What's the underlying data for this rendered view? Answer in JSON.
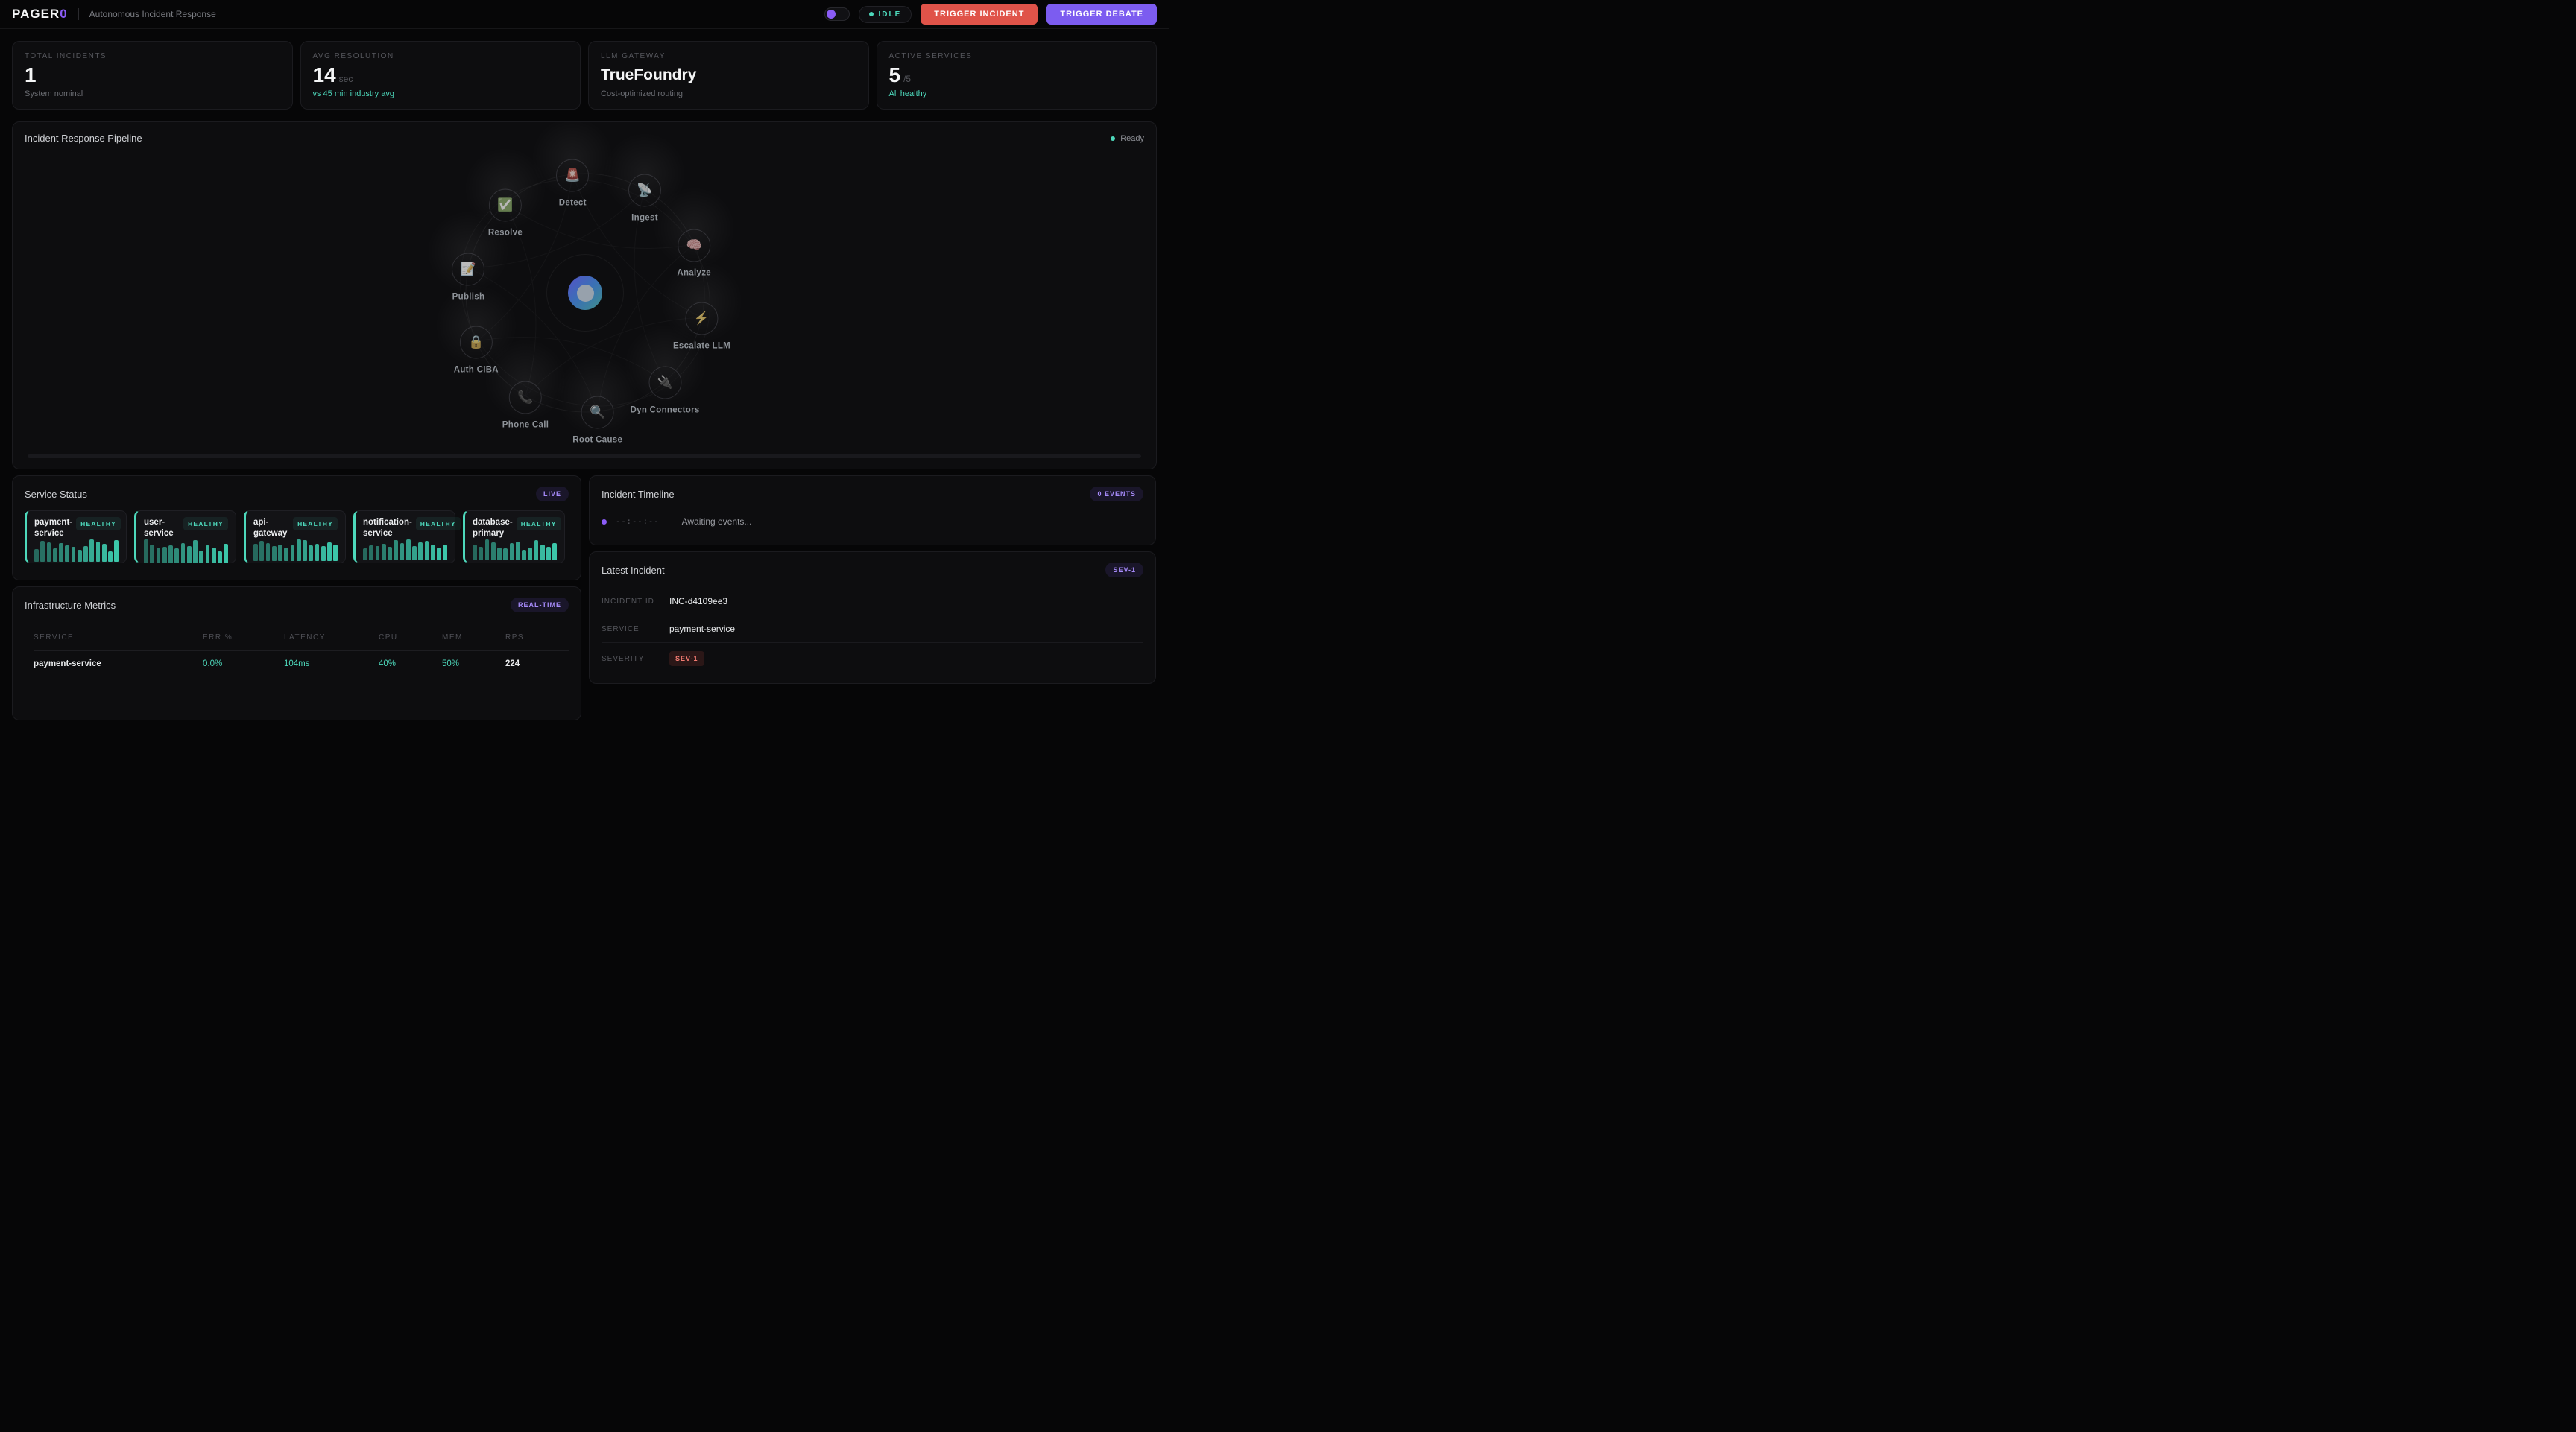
{
  "colors": {
    "teal": "#4dd8bb",
    "purple": "#8b5cf6",
    "purple_light": "#a78bfa",
    "red": "#e05349",
    "orb_gradient": [
      "#5552c8",
      "#3a70b5",
      "#3f8f88"
    ]
  },
  "header": {
    "logo_text": "PAGER",
    "logo_accent": "0",
    "subtitle": "Autonomous Incident Response",
    "status_label": "IDLE",
    "trigger_incident_label": "TRIGGER INCIDENT",
    "trigger_debate_label": "TRIGGER DEBATE"
  },
  "stats": [
    {
      "label": "TOTAL INCIDENTS",
      "value": "1",
      "suffix": "",
      "size": "lg",
      "sub": "System nominal",
      "sub_style": "gray"
    },
    {
      "label": "AVG RESOLUTION",
      "value": "14",
      "suffix": "sec",
      "size": "lg",
      "sub": "vs 45 min industry avg",
      "sub_style": "teal"
    },
    {
      "label": "LLM GATEWAY",
      "value": "TrueFoundry",
      "suffix": "",
      "size": "md",
      "sub": "Cost-optimized routing",
      "sub_style": "gray"
    },
    {
      "label": "ACTIVE SERVICES",
      "value": "5",
      "suffix": "/5",
      "size": "lg",
      "sub": "All healthy",
      "sub_style": "teal"
    }
  ],
  "pipeline": {
    "title": "Incident Response Pipeline",
    "status": "Ready",
    "nodes": [
      {
        "label": "Detect",
        "icon": "siren-icon",
        "emoji": "🚨"
      },
      {
        "label": "Ingest",
        "icon": "satellite-icon",
        "emoji": "📡"
      },
      {
        "label": "Analyze",
        "icon": "brain-icon",
        "emoji": "🧠"
      },
      {
        "label": "Escalate LLM",
        "icon": "lightning-icon",
        "emoji": "⚡"
      },
      {
        "label": "Dyn Connectors",
        "icon": "plug-icon",
        "emoji": "🔌"
      },
      {
        "label": "Root Cause",
        "icon": "magnifier-icon",
        "emoji": "🔍"
      },
      {
        "label": "Phone Call",
        "icon": "phone-icon",
        "emoji": "📞"
      },
      {
        "label": "Auth CIBA",
        "icon": "lock-icon",
        "emoji": "🔒"
      },
      {
        "label": "Publish",
        "icon": "memo-icon",
        "emoji": "📝"
      },
      {
        "label": "Resolve",
        "icon": "check-icon",
        "emoji": "✅"
      }
    ]
  },
  "service_status": {
    "title": "Service Status",
    "badge": "LIVE",
    "services": [
      {
        "name": "payment-service",
        "status": "HEALTHY",
        "bars": [
          28,
          58,
          52,
          30,
          50,
          42,
          35,
          26,
          38,
          64,
          56,
          46,
          20,
          60
        ]
      },
      {
        "name": "user-service",
        "status": "HEALTHY",
        "bars": [
          70,
          50,
          38,
          42,
          48,
          35,
          55,
          45,
          68,
          28,
          46,
          40,
          25,
          52
        ]
      },
      {
        "name": "api-gateway",
        "status": "HEALTHY",
        "bars": [
          45,
          55,
          48,
          35,
          42,
          30,
          38,
          62,
          58,
          40,
          45,
          35,
          50,
          42
        ]
      },
      {
        "name": "notification-service",
        "status": "HEALTHY",
        "bars": [
          25,
          35,
          32,
          42,
          30,
          55,
          45,
          58,
          32,
          48,
          52,
          38,
          28,
          40
        ]
      },
      {
        "name": "database-primary",
        "status": "HEALTHY",
        "bars": [
          40,
          30,
          58,
          48,
          28,
          25,
          45,
          50,
          20,
          28,
          55,
          38,
          30,
          45
        ]
      }
    ]
  },
  "timeline": {
    "title": "Incident Timeline",
    "badge": "0 EVENTS",
    "event_time": "--:--:--",
    "event_text": "Awaiting events..."
  },
  "latest_incident": {
    "title": "Latest Incident",
    "badge": "SEV-1",
    "rows": [
      {
        "label": "INCIDENT ID",
        "value": "INC-d4109ee3",
        "type": "text"
      },
      {
        "label": "SERVICE",
        "value": "payment-service",
        "type": "text"
      },
      {
        "label": "SEVERITY",
        "value": "SEV-1",
        "type": "badge"
      }
    ]
  },
  "infrastructure": {
    "title": "Infrastructure Metrics",
    "badge": "REAL-TIME",
    "columns": [
      "SERVICE",
      "ERR %",
      "LATENCY",
      "CPU",
      "MEM",
      "RPS"
    ],
    "rows": [
      {
        "service": "payment-service",
        "err": "0.0%",
        "latency": "104ms",
        "cpu": "40%",
        "mem": "50%",
        "rps": "224"
      }
    ]
  }
}
